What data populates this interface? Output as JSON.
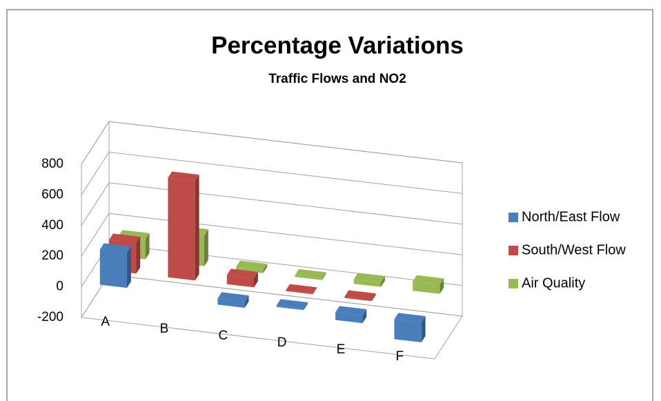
{
  "chart_data": {
    "type": "bar3d",
    "title": "Percentage Variations",
    "subtitle": "Traffic Flows and NO2",
    "categories": [
      "A",
      "B",
      "C",
      "D",
      "E",
      "F"
    ],
    "series": [
      {
        "name": "North/East Flow",
        "color": "#4a7ebb",
        "values": [
          230,
          null,
          -40,
          -10,
          -50,
          -130
        ]
      },
      {
        "name": "South/West Flow",
        "color": "#be4b48",
        "values": [
          200,
          650,
          60,
          5,
          10,
          null
        ]
      },
      {
        "name": "Air Quality",
        "color": "#98b954",
        "values": [
          130,
          200,
          20,
          10,
          30,
          60
        ]
      }
    ],
    "ylim": [
      -200,
      800
    ],
    "yticks": [
      -200,
      0,
      200,
      400,
      600,
      800
    ],
    "grid": true,
    "legend": "right"
  }
}
